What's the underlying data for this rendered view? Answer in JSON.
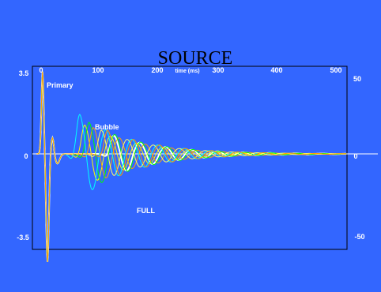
{
  "chart_data": {
    "type": "line",
    "title": "SOURCE",
    "xlabel": "time (ms)",
    "xlim": [
      0,
      500
    ],
    "ylim_left": [
      -3.5,
      3.5
    ],
    "ylim_right": [
      -50,
      50
    ],
    "x_ticks": [
      "0",
      "100",
      "200",
      "300",
      "400",
      "500"
    ],
    "y_ticks_left": [
      "3.5",
      "0",
      "-3.5"
    ],
    "y_ticks_right": [
      "50",
      "0",
      "-50"
    ],
    "annotations": {
      "primary": "Primary",
      "bubble": "Bubble",
      "full": "FULL"
    },
    "grid": false,
    "series": [
      {
        "color": "#ffffff",
        "t0": 0,
        "bubble": 125,
        "amp": 0.35
      },
      {
        "color": "#ffff00",
        "t0": 0,
        "bubble": 78,
        "amp": 0.55
      },
      {
        "color": "#ffa500",
        "t0": 0,
        "bubble": 92,
        "amp": 0.5
      },
      {
        "color": "#00ff00",
        "t0": 0,
        "bubble": 85,
        "amp": 0.6
      },
      {
        "color": "#00ffff",
        "t0": 0,
        "bubble": 70,
        "amp": 0.75
      },
      {
        "color": "#ffff66",
        "t0": 0,
        "bubble": 105,
        "amp": 0.45
      },
      {
        "color": "#ff9900",
        "t0": 0,
        "bubble": 115,
        "amp": 0.45
      }
    ]
  }
}
